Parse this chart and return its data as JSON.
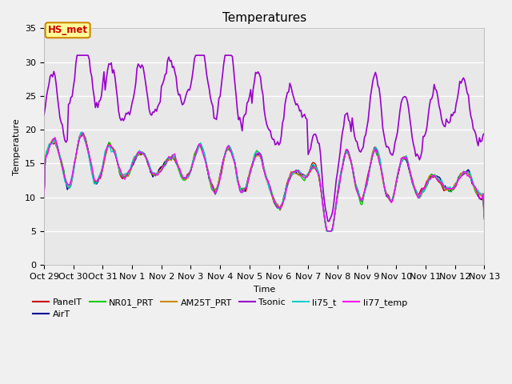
{
  "title": "Temperatures",
  "xlabel": "Time",
  "ylabel": "Temperature",
  "ylim": [
    0,
    35
  ],
  "xlim": [
    0,
    360
  ],
  "background_color": "#f0f0f0",
  "plot_bg_color": "#e8e8e8",
  "annotation_text": "HS_met",
  "annotation_color": "#cc0000",
  "annotation_bg": "#ffff99",
  "annotation_border": "#cc8800",
  "x_tick_labels": [
    "Oct 29",
    "Oct 30",
    "Oct 31",
    "Nov 1",
    "Nov 2",
    "Nov 3",
    "Nov 4",
    "Nov 5",
    "Nov 6",
    "Nov 7",
    "Nov 8",
    "Nov 9",
    "Nov 10",
    "Nov 11",
    "Nov 12",
    "Nov 13"
  ],
  "x_tick_positions": [
    0,
    24,
    48,
    72,
    96,
    120,
    144,
    168,
    192,
    216,
    240,
    264,
    288,
    312,
    336,
    360
  ],
  "series_order": [
    "PanelT",
    "AirT",
    "NR01_PRT",
    "AM25T_PRT",
    "Tsonic",
    "li75_t",
    "li77_temp"
  ],
  "series": {
    "PanelT": {
      "color": "#cc0000",
      "lw": 1.0
    },
    "AirT": {
      "color": "#000099",
      "lw": 1.0
    },
    "NR01_PRT": {
      "color": "#00cc00",
      "lw": 1.0
    },
    "AM25T_PRT": {
      "color": "#cc8800",
      "lw": 1.0
    },
    "Tsonic": {
      "color": "#9900cc",
      "lw": 1.2
    },
    "li75_t": {
      "color": "#00cccc",
      "lw": 1.0
    },
    "li77_temp": {
      "color": "#ff00ff",
      "lw": 1.0
    }
  },
  "legend_order": [
    "PanelT",
    "AirT",
    "NR01_PRT",
    "AM25T_PRT",
    "Tsonic",
    "li75_t",
    "li77_temp"
  ]
}
